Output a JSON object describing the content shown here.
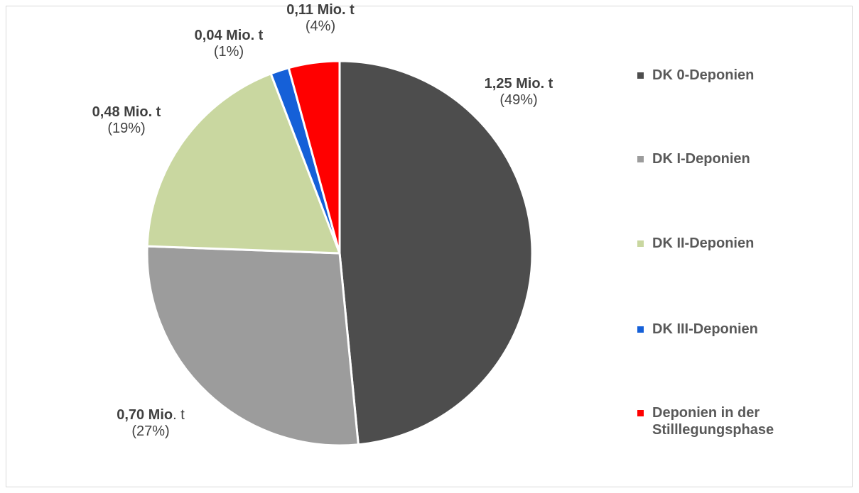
{
  "chart_data": {
    "type": "pie",
    "slices": [
      {
        "name": "DK 0-Deponien",
        "value": 1.25,
        "label_value": "1,25 Mio. t",
        "label_pct": "(49%)",
        "color": "#4d4d4d"
      },
      {
        "name": "DK I-Deponien",
        "value": 0.7,
        "label_value": "0,70 Mio",
        "label_unit": ". t",
        "label_pct": "(27%)",
        "color": "#9c9c9c"
      },
      {
        "name": "DK II-Deponien",
        "value": 0.48,
        "label_value": "0,48 Mio. t",
        "label_pct": "(19%)",
        "color": "#c9d7a0"
      },
      {
        "name": "DK III-Deponien",
        "value": 0.04,
        "label_value": "0,04 Mio. t",
        "label_pct": "(1%)",
        "color": "#1560d8"
      },
      {
        "name": "Deponien in der Stilllegungsphase",
        "value": 0.11,
        "label_value": "0,11 Mio. t",
        "label_pct": "(4%)",
        "color": "#ff0000"
      }
    ],
    "legend": {
      "position": "right",
      "items": [
        {
          "label": "DK 0-Deponien",
          "color": "#4d4d4d"
        },
        {
          "label": "DK I-Deponien",
          "color": "#9c9c9c"
        },
        {
          "label": "DK II-Deponien",
          "color": "#c9d7a0"
        },
        {
          "label": "DK III-Deponien",
          "color": "#1560d8"
        },
        {
          "label": "Deponien in der\nStilllegungsphase",
          "color": "#ff0000"
        }
      ]
    }
  }
}
